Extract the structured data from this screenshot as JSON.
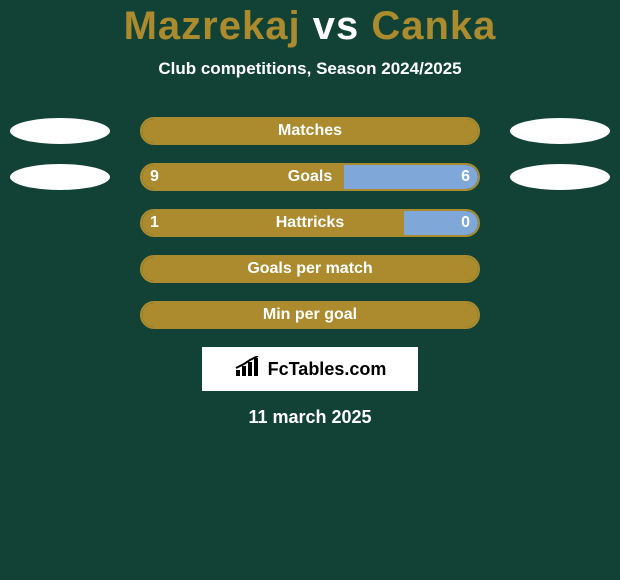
{
  "background_color": "#124236",
  "title": {
    "left": "Mazrekaj",
    "vs": "vs",
    "right": "Canka",
    "left_color": "#ab8b2e",
    "vs_color": "#ffffff",
    "right_color": "#ab8b2e"
  },
  "subtitle": "Club competitions, Season 2024/2025",
  "left_player_color": "#ab8b2e",
  "right_player_color": "#7fa8d9",
  "bar_border_color": "#ab8b2e",
  "rows": [
    {
      "label": "Matches",
      "left_val": "",
      "right_val": "",
      "left_pct": 100,
      "right_pct": 0,
      "show_ellipses": true,
      "show_left_val": false,
      "show_right_val": false
    },
    {
      "label": "Goals",
      "left_val": "9",
      "right_val": "6",
      "left_pct": 60,
      "right_pct": 40,
      "show_ellipses": true,
      "show_left_val": true,
      "show_right_val": true
    },
    {
      "label": "Hattricks",
      "left_val": "1",
      "right_val": "0",
      "left_pct": 78,
      "right_pct": 22,
      "show_ellipses": false,
      "show_left_val": true,
      "show_right_val": true
    },
    {
      "label": "Goals per match",
      "left_val": "",
      "right_val": "",
      "left_pct": 100,
      "right_pct": 0,
      "show_ellipses": false,
      "show_left_val": false,
      "show_right_val": false
    },
    {
      "label": "Min per goal",
      "left_val": "",
      "right_val": "",
      "left_pct": 100,
      "right_pct": 0,
      "show_ellipses": false,
      "show_left_val": false,
      "show_right_val": false
    }
  ],
  "logo_text": "FcTables.com",
  "date": "11 march 2025",
  "logo_icon_color": "#000000"
}
